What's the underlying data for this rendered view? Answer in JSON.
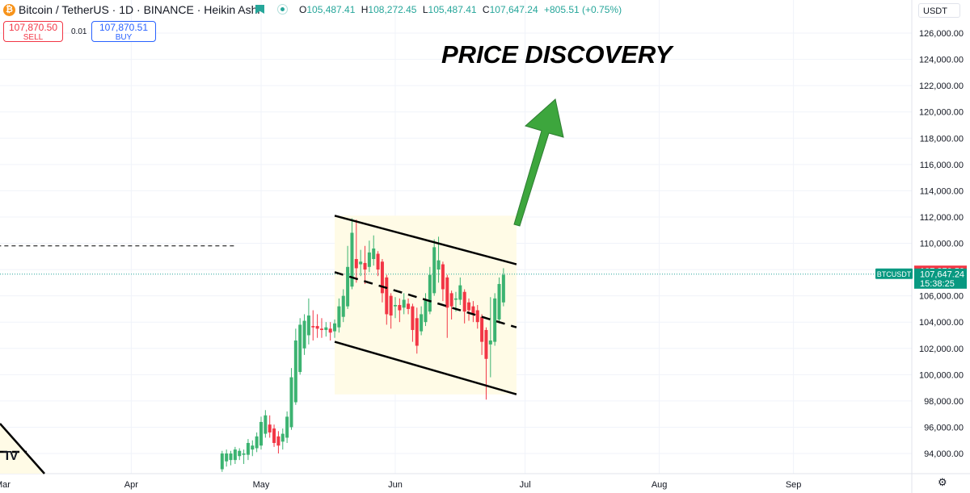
{
  "header": {
    "symbol_title": "Bitcoin / TetherUS · 1D · BINANCE · Heikin Ashi",
    "ohlc": [
      {
        "key": "O",
        "value": "105,487.41"
      },
      {
        "key": "H",
        "value": "108,272.45"
      },
      {
        "key": "L",
        "value": "105,487.41"
      },
      {
        "key": "C",
        "value": "107,647.24"
      }
    ],
    "change": "+805.51 (+0.75%)"
  },
  "trade": {
    "sell_price": "107,870.50",
    "sell_label": "SELL",
    "spread": "0.01",
    "buy_price": "107,870.51",
    "buy_label": "BUY"
  },
  "currency_selector": "USDT",
  "annotation_text": "PRICE DISCOVERY",
  "colors": {
    "up": "#26a69a",
    "candle_up": "#3cb371",
    "down": "#f23645",
    "grid": "#f0f3fa",
    "channel_fill": "#fffbe6",
    "arrow": "#3da63d",
    "price_label_up": "#089981",
    "price_label_down": "#f23645"
  },
  "icons": [
    "bitcoin-logo-icon",
    "flag-icon",
    "live-status-icon",
    "settings-gear-icon",
    "tradingview-logo-icon"
  ],
  "chart_data": {
    "type": "candlestick",
    "style": "Heikin Ashi",
    "symbol": "BTCUSDT",
    "ylim": [
      93000,
      127500
    ],
    "y_ticks": [
      94000,
      96000,
      98000,
      100000,
      102000,
      104000,
      106000,
      108000,
      110000,
      112000,
      114000,
      116000,
      118000,
      120000,
      122000,
      124000,
      126000
    ],
    "y_tick_labels": [
      "94,000.00",
      "96,000.00",
      "98,000.00",
      "100,000.00",
      "102,000.00",
      "104,000.00",
      "106,000.00",
      "108,000.00",
      "110,000.00",
      "112,000.00",
      "114,000.00",
      "116,000.00",
      "118,000.00",
      "120,000.00",
      "122,000.00",
      "124,000.00",
      "126,000.00"
    ],
    "x_range": [
      "2025-03-01",
      "2025-09-30"
    ],
    "x_ticks": [
      {
        "date": "2025-04-01",
        "label": "Apr"
      },
      {
        "date": "2025-05-01",
        "label": "May"
      },
      {
        "date": "2025-06-01",
        "label": "Jun"
      },
      {
        "date": "2025-07-01",
        "label": "Jul"
      },
      {
        "date": "2025-08-01",
        "label": "Aug"
      },
      {
        "date": "2025-09-01",
        "label": "Sep"
      }
    ],
    "grid": true,
    "candles": [
      {
        "date": "2025-04-22",
        "open": 92800,
        "high": 94200,
        "low": 92600,
        "close": 94000
      },
      {
        "date": "2025-04-23",
        "open": 93400,
        "high": 94300,
        "low": 93000,
        "close": 94000
      },
      {
        "date": "2025-04-24",
        "open": 93500,
        "high": 94200,
        "low": 93100,
        "close": 94000
      },
      {
        "date": "2025-04-25",
        "open": 93500,
        "high": 94500,
        "low": 93200,
        "close": 94300
      },
      {
        "date": "2025-04-26",
        "open": 93800,
        "high": 94400,
        "low": 93500,
        "close": 94200
      },
      {
        "date": "2025-04-27",
        "open": 93900,
        "high": 94300,
        "low": 93200,
        "close": 94000
      },
      {
        "date": "2025-04-28",
        "open": 93900,
        "high": 95100,
        "low": 93500,
        "close": 94800
      },
      {
        "date": "2025-04-29",
        "open": 94300,
        "high": 95000,
        "low": 93800,
        "close": 94600
      },
      {
        "date": "2025-04-30",
        "open": 94400,
        "high": 95600,
        "low": 94100,
        "close": 95300
      },
      {
        "date": "2025-05-01",
        "open": 94600,
        "high": 96800,
        "low": 94300,
        "close": 96400
      },
      {
        "date": "2025-05-02",
        "open": 95500,
        "high": 97300,
        "low": 95200,
        "close": 96900
      },
      {
        "date": "2025-05-03",
        "open": 96200,
        "high": 96900,
        "low": 95200,
        "close": 95600
      },
      {
        "date": "2025-05-04",
        "open": 95900,
        "high": 96200,
        "low": 94500,
        "close": 94800
      },
      {
        "date": "2025-05-05",
        "open": 95300,
        "high": 95700,
        "low": 94000,
        "close": 94600
      },
      {
        "date": "2025-05-06",
        "open": 94900,
        "high": 95900,
        "low": 94300,
        "close": 95500
      },
      {
        "date": "2025-05-07",
        "open": 95200,
        "high": 97200,
        "low": 94800,
        "close": 96800
      },
      {
        "date": "2025-05-08",
        "open": 96000,
        "high": 100500,
        "low": 95800,
        "close": 99800
      },
      {
        "date": "2025-05-09",
        "open": 97900,
        "high": 103500,
        "low": 97700,
        "close": 102600
      },
      {
        "date": "2025-05-10",
        "open": 100200,
        "high": 104300,
        "low": 100000,
        "close": 103800
      },
      {
        "date": "2025-05-11",
        "open": 102000,
        "high": 104600,
        "low": 101500,
        "close": 104100
      },
      {
        "date": "2025-05-12",
        "open": 103000,
        "high": 105800,
        "low": 102300,
        "close": 104500
      },
      {
        "date": "2025-05-13",
        "open": 103700,
        "high": 104900,
        "low": 102600,
        "close": 103600
      },
      {
        "date": "2025-05-14",
        "open": 103700,
        "high": 104600,
        "low": 102800,
        "close": 103500
      },
      {
        "date": "2025-05-15",
        "open": 103500,
        "high": 104300,
        "low": 102800,
        "close": 103400
      },
      {
        "date": "2025-05-16",
        "open": 103400,
        "high": 104000,
        "low": 102900,
        "close": 103600
      },
      {
        "date": "2025-05-17",
        "open": 103500,
        "high": 104000,
        "low": 102600,
        "close": 103200
      },
      {
        "date": "2025-05-18",
        "open": 103300,
        "high": 104200,
        "low": 102800,
        "close": 103900
      },
      {
        "date": "2025-05-19",
        "open": 103600,
        "high": 105800,
        "low": 103200,
        "close": 105200
      },
      {
        "date": "2025-05-20",
        "open": 104400,
        "high": 106500,
        "low": 104000,
        "close": 106000
      },
      {
        "date": "2025-05-21",
        "open": 105200,
        "high": 109800,
        "low": 105000,
        "close": 108200
      },
      {
        "date": "2025-05-22",
        "open": 106700,
        "high": 111900,
        "low": 106500,
        "close": 110800
      },
      {
        "date": "2025-05-23",
        "open": 108800,
        "high": 111800,
        "low": 107000,
        "close": 108100
      },
      {
        "date": "2025-05-24",
        "open": 108400,
        "high": 109500,
        "low": 107500,
        "close": 108600
      },
      {
        "date": "2025-05-25",
        "open": 108500,
        "high": 109800,
        "low": 106900,
        "close": 108000
      },
      {
        "date": "2025-05-26",
        "open": 108200,
        "high": 110200,
        "low": 107800,
        "close": 109300
      },
      {
        "date": "2025-05-27",
        "open": 108800,
        "high": 110600,
        "low": 108300,
        "close": 109600
      },
      {
        "date": "2025-05-28",
        "open": 109200,
        "high": 109400,
        "low": 107500,
        "close": 108000
      },
      {
        "date": "2025-05-29",
        "open": 108600,
        "high": 108800,
        "low": 105500,
        "close": 106200
      },
      {
        "date": "2025-05-30",
        "open": 107400,
        "high": 107600,
        "low": 103800,
        "close": 104600
      },
      {
        "date": "2025-05-31",
        "open": 106000,
        "high": 106200,
        "low": 103500,
        "close": 104500
      },
      {
        "date": "2025-06-01",
        "open": 105200,
        "high": 105900,
        "low": 104300,
        "close": 105300
      },
      {
        "date": "2025-06-02",
        "open": 105300,
        "high": 105800,
        "low": 104000,
        "close": 104900
      },
      {
        "date": "2025-06-03",
        "open": 105100,
        "high": 106200,
        "low": 104600,
        "close": 105700
      },
      {
        "date": "2025-06-04",
        "open": 105400,
        "high": 105800,
        "low": 104600,
        "close": 105000
      },
      {
        "date": "2025-06-05",
        "open": 105200,
        "high": 105400,
        "low": 102500,
        "close": 103400
      },
      {
        "date": "2025-06-06",
        "open": 104300,
        "high": 105100,
        "low": 101600,
        "close": 102200
      },
      {
        "date": "2025-06-07",
        "open": 103300,
        "high": 105200,
        "low": 103000,
        "close": 104600
      },
      {
        "date": "2025-06-08",
        "open": 104000,
        "high": 106200,
        "low": 103700,
        "close": 105700
      },
      {
        "date": "2025-06-09",
        "open": 104800,
        "high": 108200,
        "low": 104600,
        "close": 107600
      },
      {
        "date": "2025-06-10",
        "open": 106200,
        "high": 110300,
        "low": 106000,
        "close": 109700
      },
      {
        "date": "2025-06-11",
        "open": 108000,
        "high": 110500,
        "low": 107000,
        "close": 108700
      },
      {
        "date": "2025-06-12",
        "open": 108400,
        "high": 108600,
        "low": 105600,
        "close": 106500
      },
      {
        "date": "2025-06-13",
        "open": 107400,
        "high": 107600,
        "low": 102800,
        "close": 105100
      },
      {
        "date": "2025-06-14",
        "open": 106200,
        "high": 106400,
        "low": 104200,
        "close": 105200
      },
      {
        "date": "2025-06-15",
        "open": 105700,
        "high": 106300,
        "low": 104800,
        "close": 105800
      },
      {
        "date": "2025-06-16",
        "open": 105700,
        "high": 107400,
        "low": 105300,
        "close": 106800
      },
      {
        "date": "2025-06-17",
        "open": 106300,
        "high": 106500,
        "low": 103900,
        "close": 104800
      },
      {
        "date": "2025-06-18",
        "open": 105500,
        "high": 105800,
        "low": 104100,
        "close": 104900
      },
      {
        "date": "2025-06-19",
        "open": 105200,
        "high": 105600,
        "low": 104000,
        "close": 104600
      },
      {
        "date": "2025-06-20",
        "open": 104900,
        "high": 105300,
        "low": 103500,
        "close": 104000
      },
      {
        "date": "2025-06-21",
        "open": 104400,
        "high": 104600,
        "low": 101500,
        "close": 102500
      },
      {
        "date": "2025-06-22",
        "open": 103400,
        "high": 103600,
        "low": 98100,
        "close": 101200
      },
      {
        "date": "2025-06-23",
        "open": 102300,
        "high": 105900,
        "low": 99800,
        "close": 102600
      },
      {
        "date": "2025-06-24",
        "open": 102500,
        "high": 106200,
        "low": 102200,
        "close": 105800
      },
      {
        "date": "2025-06-25",
        "open": 104200,
        "high": 107400,
        "low": 103900,
        "close": 106900
      },
      {
        "date": "2025-06-26",
        "open": 105500,
        "high": 108100,
        "low": 105200,
        "close": 107600
      }
    ],
    "dashed_level": {
      "value": 109800,
      "from": "2025-03-01",
      "to": "2025-04-25"
    },
    "channel": {
      "upper": [
        {
          "date": "2025-05-18",
          "value": 112100
        },
        {
          "date": "2025-06-29",
          "value": 108400
        }
      ],
      "middle": [
        {
          "date": "2025-05-18",
          "value": 107800
        },
        {
          "date": "2025-06-29",
          "value": 103600
        }
      ],
      "lower": [
        {
          "date": "2025-05-18",
          "value": 102500
        },
        {
          "date": "2025-06-29",
          "value": 98500
        }
      ]
    },
    "price_labels": {
      "bid": "107,870.50",
      "last": "107,647.24",
      "countdown": "15:38:25",
      "symbol_tag": "BTCUSDT",
      "last_value": 107647.24,
      "bid_value": 107870.5
    }
  }
}
